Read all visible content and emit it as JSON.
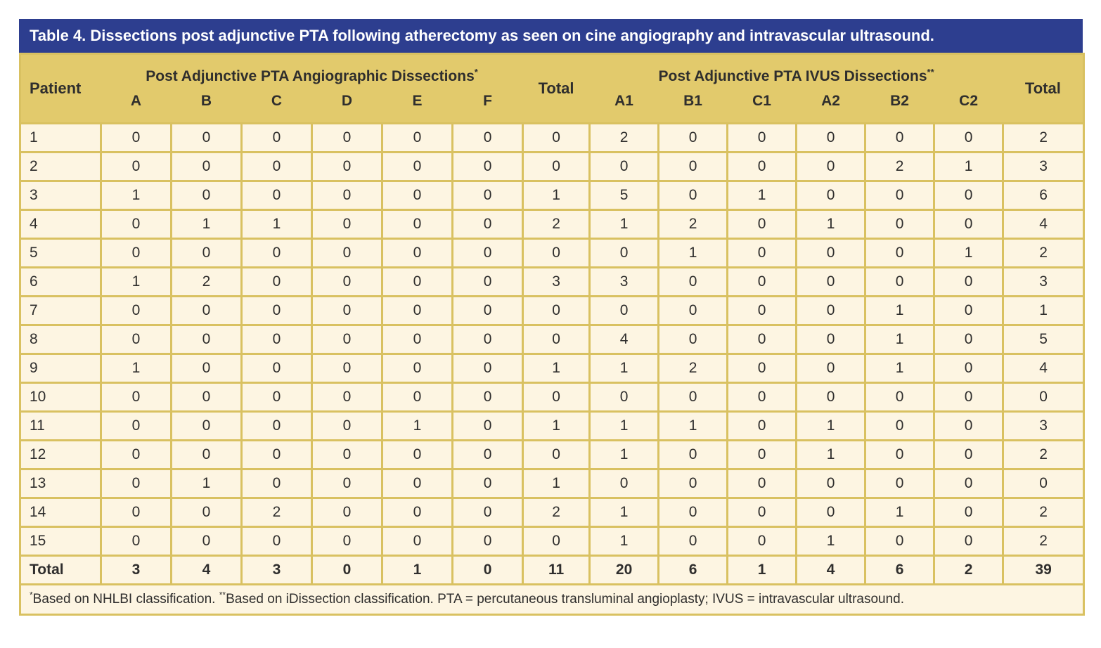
{
  "title": "Table 4. Dissections post adjunctive PTA following atherectomy as seen on cine angiography and intravascular ultrasound.",
  "table": {
    "patient_label": "Patient",
    "total_label": "Total",
    "groups": [
      {
        "label": "Post Adjunctive PTA Angiographic Dissections",
        "sup": "*",
        "columns": [
          "A",
          "B",
          "C",
          "D",
          "E",
          "F"
        ]
      },
      {
        "label": "Post Adjunctive PTA IVUS Dissections",
        "sup": "**",
        "columns": [
          "A1",
          "B1",
          "C1",
          "A2",
          "B2",
          "C2"
        ]
      }
    ],
    "rows": [
      {
        "patient": "1",
        "angio": [
          "0",
          "0",
          "0",
          "0",
          "0",
          "0"
        ],
        "angio_total": "0",
        "ivus": [
          "2",
          "0",
          "0",
          "0",
          "0",
          "0"
        ],
        "ivus_total": "2"
      },
      {
        "patient": "2",
        "angio": [
          "0",
          "0",
          "0",
          "0",
          "0",
          "0"
        ],
        "angio_total": "0",
        "ivus": [
          "0",
          "0",
          "0",
          "0",
          "2",
          "1"
        ],
        "ivus_total": "3"
      },
      {
        "patient": "3",
        "angio": [
          "1",
          "0",
          "0",
          "0",
          "0",
          "0"
        ],
        "angio_total": "1",
        "ivus": [
          "5",
          "0",
          "1",
          "0",
          "0",
          "0"
        ],
        "ivus_total": "6"
      },
      {
        "patient": "4",
        "angio": [
          "0",
          "1",
          "1",
          "0",
          "0",
          "0"
        ],
        "angio_total": "2",
        "ivus": [
          "1",
          "2",
          "0",
          "1",
          "0",
          "0"
        ],
        "ivus_total": "4"
      },
      {
        "patient": "5",
        "angio": [
          "0",
          "0",
          "0",
          "0",
          "0",
          "0"
        ],
        "angio_total": "0",
        "ivus": [
          "0",
          "1",
          "0",
          "0",
          "0",
          "1"
        ],
        "ivus_total": "2"
      },
      {
        "patient": "6",
        "angio": [
          "1",
          "2",
          "0",
          "0",
          "0",
          "0"
        ],
        "angio_total": "3",
        "ivus": [
          "3",
          "0",
          "0",
          "0",
          "0",
          "0"
        ],
        "ivus_total": "3"
      },
      {
        "patient": "7",
        "angio": [
          "0",
          "0",
          "0",
          "0",
          "0",
          "0"
        ],
        "angio_total": "0",
        "ivus": [
          "0",
          "0",
          "0",
          "0",
          "1",
          "0"
        ],
        "ivus_total": "1"
      },
      {
        "patient": "8",
        "angio": [
          "0",
          "0",
          "0",
          "0",
          "0",
          "0"
        ],
        "angio_total": "0",
        "ivus": [
          "4",
          "0",
          "0",
          "0",
          "1",
          "0"
        ],
        "ivus_total": "5"
      },
      {
        "patient": "9",
        "angio": [
          "1",
          "0",
          "0",
          "0",
          "0",
          "0"
        ],
        "angio_total": "1",
        "ivus": [
          "1",
          "2",
          "0",
          "0",
          "1",
          "0"
        ],
        "ivus_total": "4"
      },
      {
        "patient": "10",
        "angio": [
          "0",
          "0",
          "0",
          "0",
          "0",
          "0"
        ],
        "angio_total": "0",
        "ivus": [
          "0",
          "0",
          "0",
          "0",
          "0",
          "0"
        ],
        "ivus_total": "0"
      },
      {
        "patient": "11",
        "angio": [
          "0",
          "0",
          "0",
          "0",
          "1",
          "0"
        ],
        "angio_total": "1",
        "ivus": [
          "1",
          "1",
          "0",
          "1",
          "0",
          "0"
        ],
        "ivus_total": "3"
      },
      {
        "patient": "12",
        "angio": [
          "0",
          "0",
          "0",
          "0",
          "0",
          "0"
        ],
        "angio_total": "0",
        "ivus": [
          "1",
          "0",
          "0",
          "1",
          "0",
          "0"
        ],
        "ivus_total": "2"
      },
      {
        "patient": "13",
        "angio": [
          "0",
          "1",
          "0",
          "0",
          "0",
          "0"
        ],
        "angio_total": "1",
        "ivus": [
          "0",
          "0",
          "0",
          "0",
          "0",
          "0"
        ],
        "ivus_total": "0"
      },
      {
        "patient": "14",
        "angio": [
          "0",
          "0",
          "2",
          "0",
          "0",
          "0"
        ],
        "angio_total": "2",
        "ivus": [
          "1",
          "0",
          "0",
          "0",
          "1",
          "0"
        ],
        "ivus_total": "2"
      },
      {
        "patient": "15",
        "angio": [
          "0",
          "0",
          "0",
          "0",
          "0",
          "0"
        ],
        "angio_total": "0",
        "ivus": [
          "1",
          "0",
          "0",
          "1",
          "0",
          "0"
        ],
        "ivus_total": "2"
      }
    ],
    "totals": {
      "label": "Total",
      "angio": [
        "3",
        "4",
        "3",
        "0",
        "1",
        "0"
      ],
      "angio_total": "11",
      "ivus": [
        "20",
        "6",
        "1",
        "4",
        "6",
        "2"
      ],
      "ivus_total": "39"
    }
  },
  "footnote": {
    "segments": [
      {
        "sup": "*"
      },
      {
        "text": "Based on NHLBI classification. "
      },
      {
        "sup": "**"
      },
      {
        "text": "Based on iDissection classification. PTA = percutaneous transluminal angioplasty; IVUS = intravascular ultrasound."
      }
    ]
  },
  "colors": {
    "title_bar": "#2d3e8f",
    "title_text": "#ffffff",
    "header_bg": "#e2ca6c",
    "cell_bg": "#fdf5e2",
    "border": "#d9c161",
    "text": "#2f2e2d"
  }
}
